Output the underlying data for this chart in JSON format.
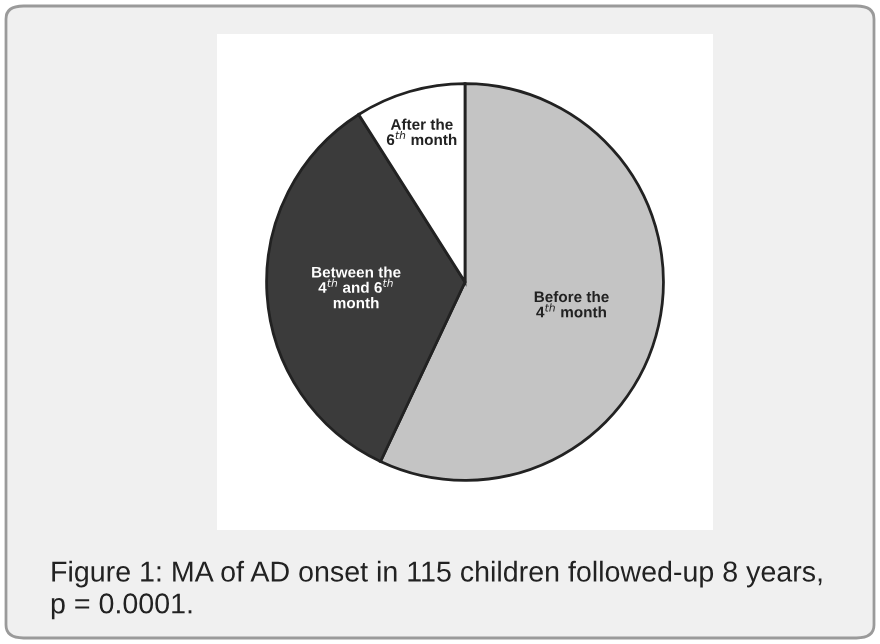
{
  "chart_data": {
    "type": "pie",
    "categories": [
      "Before the 4$^{th}$ month",
      "Between the 4$^{th}$ and 6$^{th}$ month",
      "After the 6$^{th}$ month"
    ],
    "values": [
      57,
      34,
      9
    ],
    "colors": [
      "#c4c4c4",
      "#3b3b3b",
      "#ffffff"
    ],
    "annotations": [
      "Figure 1: MA of AD onset in 115 children followed-up 8 years, p = 0.0001."
    ]
  }
}
